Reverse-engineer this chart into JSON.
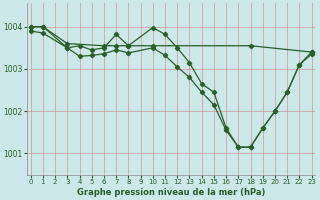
{
  "title": "Graphe pression niveau de la mer (hPa)",
  "bg_color": "#cce8e8",
  "line_color": "#2a5f2a",
  "grid_color": "#d08080",
  "ylim": [
    1000.5,
    1004.55
  ],
  "xlim": [
    -0.3,
    23.3
  ],
  "yticks": [
    1001,
    1002,
    1003,
    1004
  ],
  "xticks": [
    0,
    1,
    2,
    3,
    4,
    5,
    6,
    7,
    8,
    9,
    10,
    11,
    12,
    13,
    14,
    15,
    16,
    17,
    18,
    19,
    20,
    21,
    22,
    23
  ],
  "series": [
    {
      "x": [
        0,
        1,
        3,
        6,
        7,
        8,
        10,
        18,
        23
      ],
      "y": [
        1004.0,
        1004.0,
        1003.6,
        1003.55,
        1003.55,
        1003.55,
        1003.55,
        1003.55,
        1003.4
      ]
    },
    {
      "x": [
        0,
        1,
        3,
        4,
        5,
        6,
        7,
        8,
        10,
        11,
        12,
        13,
        14,
        15,
        16,
        17,
        18,
        19,
        20,
        21,
        22,
        23
      ],
      "y": [
        1004.0,
        1004.0,
        1003.5,
        1003.55,
        1003.45,
        1003.5,
        1003.82,
        1003.55,
        1003.98,
        1003.82,
        1003.5,
        1003.15,
        1002.65,
        1002.45,
        1001.6,
        1001.15,
        1001.15,
        1001.6,
        1002.0,
        1002.45,
        1003.1,
        1003.4
      ]
    },
    {
      "x": [
        0,
        1,
        3,
        4,
        5,
        6,
        7,
        8,
        10,
        11,
        12,
        13,
        14,
        15,
        16,
        17,
        18,
        19,
        20,
        21,
        22,
        23
      ],
      "y": [
        1003.9,
        1003.85,
        1003.5,
        1003.3,
        1003.32,
        1003.36,
        1003.45,
        1003.38,
        1003.5,
        1003.32,
        1003.05,
        1002.8,
        1002.45,
        1002.15,
        1001.55,
        1001.15,
        1001.15,
        1001.6,
        1002.0,
        1002.45,
        1003.1,
        1003.35
      ]
    }
  ],
  "figsize": [
    3.2,
    2.0
  ],
  "dpi": 100,
  "tick_labelsize": 5.5,
  "xlabel_fontsize": 6,
  "linewidth": 0.9,
  "markersize": 2.2
}
